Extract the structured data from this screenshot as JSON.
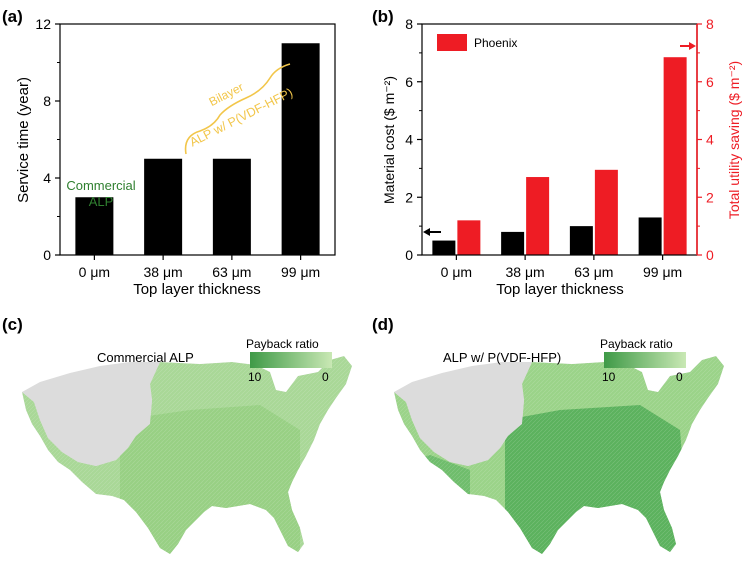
{
  "colors": {
    "bar_black": "#000000",
    "bar_red": "#ee1c24",
    "axis_red": "#ee1c24",
    "commercial_green": "#2f7f2f",
    "bilayer_yellow": "#f2c64a",
    "map_light": "#c9e7b6",
    "map_mid": "#93cf80",
    "map_dark": "#4ea552",
    "map_gray": "#dcdcdc"
  },
  "chart_data": [
    {
      "panel": "(a)",
      "type": "bar",
      "categories": [
        "0 μm",
        "38 μm",
        "63 μm",
        "99 μm"
      ],
      "values": [
        3,
        5,
        5,
        11
      ],
      "xlabel": "Top layer thickness",
      "ylabel": "Service time (year)",
      "ylim": [
        0,
        12
      ],
      "yticks": [
        "0",
        "4",
        "8",
        "12"
      ],
      "annotations": {
        "commercial": [
          "Commercial",
          "ALP"
        ],
        "bilayer": [
          "Bilayer",
          "ALP w/ P(VDF-HFP)"
        ]
      }
    },
    {
      "panel": "(b)",
      "type": "bar",
      "categories": [
        "0 μm",
        "38 μm",
        "63 μm",
        "99 μm"
      ],
      "series": [
        {
          "name": "Material cost",
          "axis": "left",
          "values": [
            0.5,
            0.8,
            1.0,
            1.3
          ]
        },
        {
          "name": "Total utility saving",
          "axis": "right",
          "values": [
            1.2,
            2.7,
            2.95,
            6.85
          ]
        }
      ],
      "xlabel": "Top layer thickness",
      "ylabel_left": "Material cost ($ m⁻²)",
      "ylabel_right": "Total utility saving ($ m⁻²)",
      "ylim": [
        0,
        8
      ],
      "yticks": [
        "0",
        "2",
        "4",
        "6",
        "8"
      ],
      "legend": "Phoenix",
      "legend_position": "top-left"
    }
  ],
  "maps": [
    {
      "panel": "(c)",
      "title": "Commercial ALP",
      "colorbar_title": "Payback ratio",
      "colorbar_min_label": "10",
      "colorbar_max_label": "0",
      "shade": "light"
    },
    {
      "panel": "(d)",
      "title": "ALP w/ P(VDF-HFP)",
      "colorbar_title": "Payback ratio",
      "colorbar_min_label": "10",
      "colorbar_max_label": "0",
      "shade": "dark"
    }
  ]
}
